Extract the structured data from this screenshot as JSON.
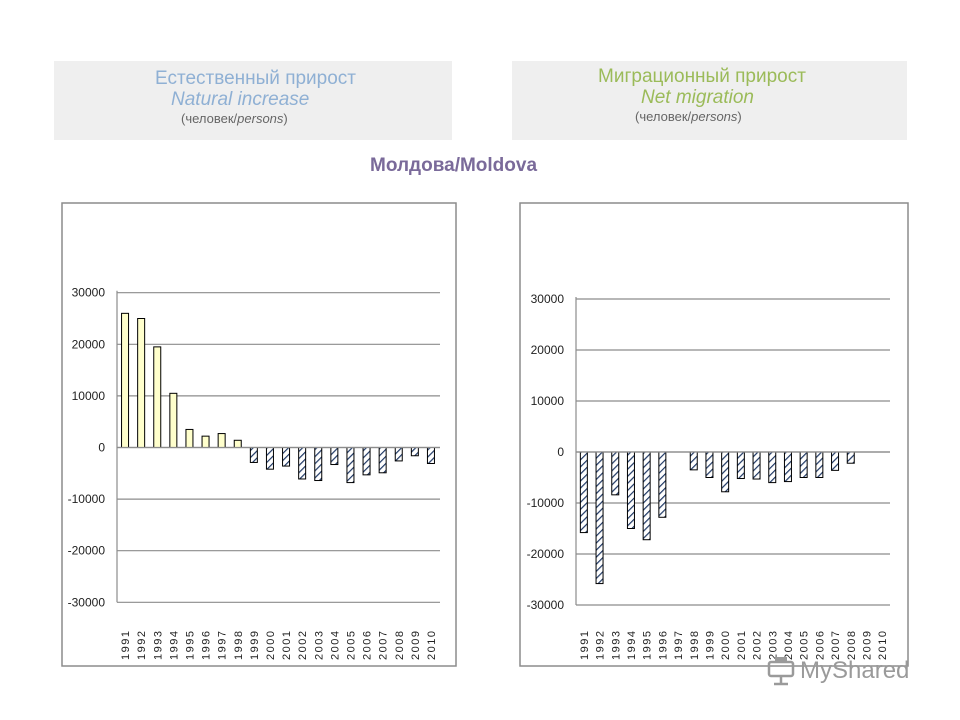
{
  "headers": {
    "left": {
      "ru": "Естественный прирост",
      "en": "Natural increase",
      "persons_open": "(человек/",
      "persons_italic": "persons",
      "persons_close": ")"
    },
    "right": {
      "ru": "Миграционный прирост",
      "en": "Net migration",
      "persons_open": "(человек/",
      "persons_italic": "persons",
      "persons_close": ")"
    }
  },
  "country": "Молдова/Moldova",
  "watermark": "MyShared",
  "colors": {
    "natural_positive": "#ffffcc",
    "negative_hatch": "#1f3864",
    "left_title": "#8fb0d4",
    "right_title": "#9bbb59",
    "country": "#7a6a9a"
  },
  "chart_data": [
    {
      "type": "bar",
      "title": "Natural increase",
      "categories": [
        "1991",
        "1992",
        "1993",
        "1994",
        "1995",
        "1996",
        "1997",
        "1998",
        "1999",
        "2000",
        "2001",
        "2002",
        "2003",
        "2004",
        "2005",
        "2006",
        "2007",
        "2008",
        "2009",
        "2010"
      ],
      "values": [
        26000,
        25000,
        19500,
        10500,
        3500,
        2200,
        2700,
        1400,
        -2900,
        -4200,
        -3600,
        -6100,
        -6400,
        -3300,
        -6800,
        -5300,
        -4900,
        -2600,
        -1600,
        -3100
      ],
      "yticks": [
        30000,
        20000,
        10000,
        0,
        -10000,
        -20000,
        -30000
      ],
      "ytick_labels": [
        "30000",
        "20000",
        "10000",
        "0",
        "-10000",
        "-20000",
        "-30000"
      ],
      "ylim": [
        -30000,
        30000
      ],
      "grid": true
    },
    {
      "type": "bar",
      "title": "Net migration",
      "categories": [
        "1991",
        "1992",
        "1993",
        "1994",
        "1995",
        "1996",
        "1997",
        "1998",
        "1999",
        "2000",
        "2001",
        "2002",
        "2003",
        "2004",
        "2005",
        "2006",
        "2007",
        "2008",
        "2009",
        "2010"
      ],
      "values": [
        -15800,
        -25800,
        -8400,
        -15000,
        -17200,
        -12800,
        null,
        -3500,
        -5000,
        -7800,
        -5200,
        -5300,
        -6000,
        -5800,
        -5000,
        -5000,
        -3600,
        -2200,
        null,
        null
      ],
      "yticks": [
        30000,
        20000,
        10000,
        0,
        -10000,
        -20000,
        -30000
      ],
      "ytick_labels": [
        "30000",
        "20000",
        "10000",
        "0",
        "-10000",
        "-20000",
        "-30000"
      ],
      "ylim": [
        -30000,
        30000
      ],
      "grid": true
    }
  ]
}
